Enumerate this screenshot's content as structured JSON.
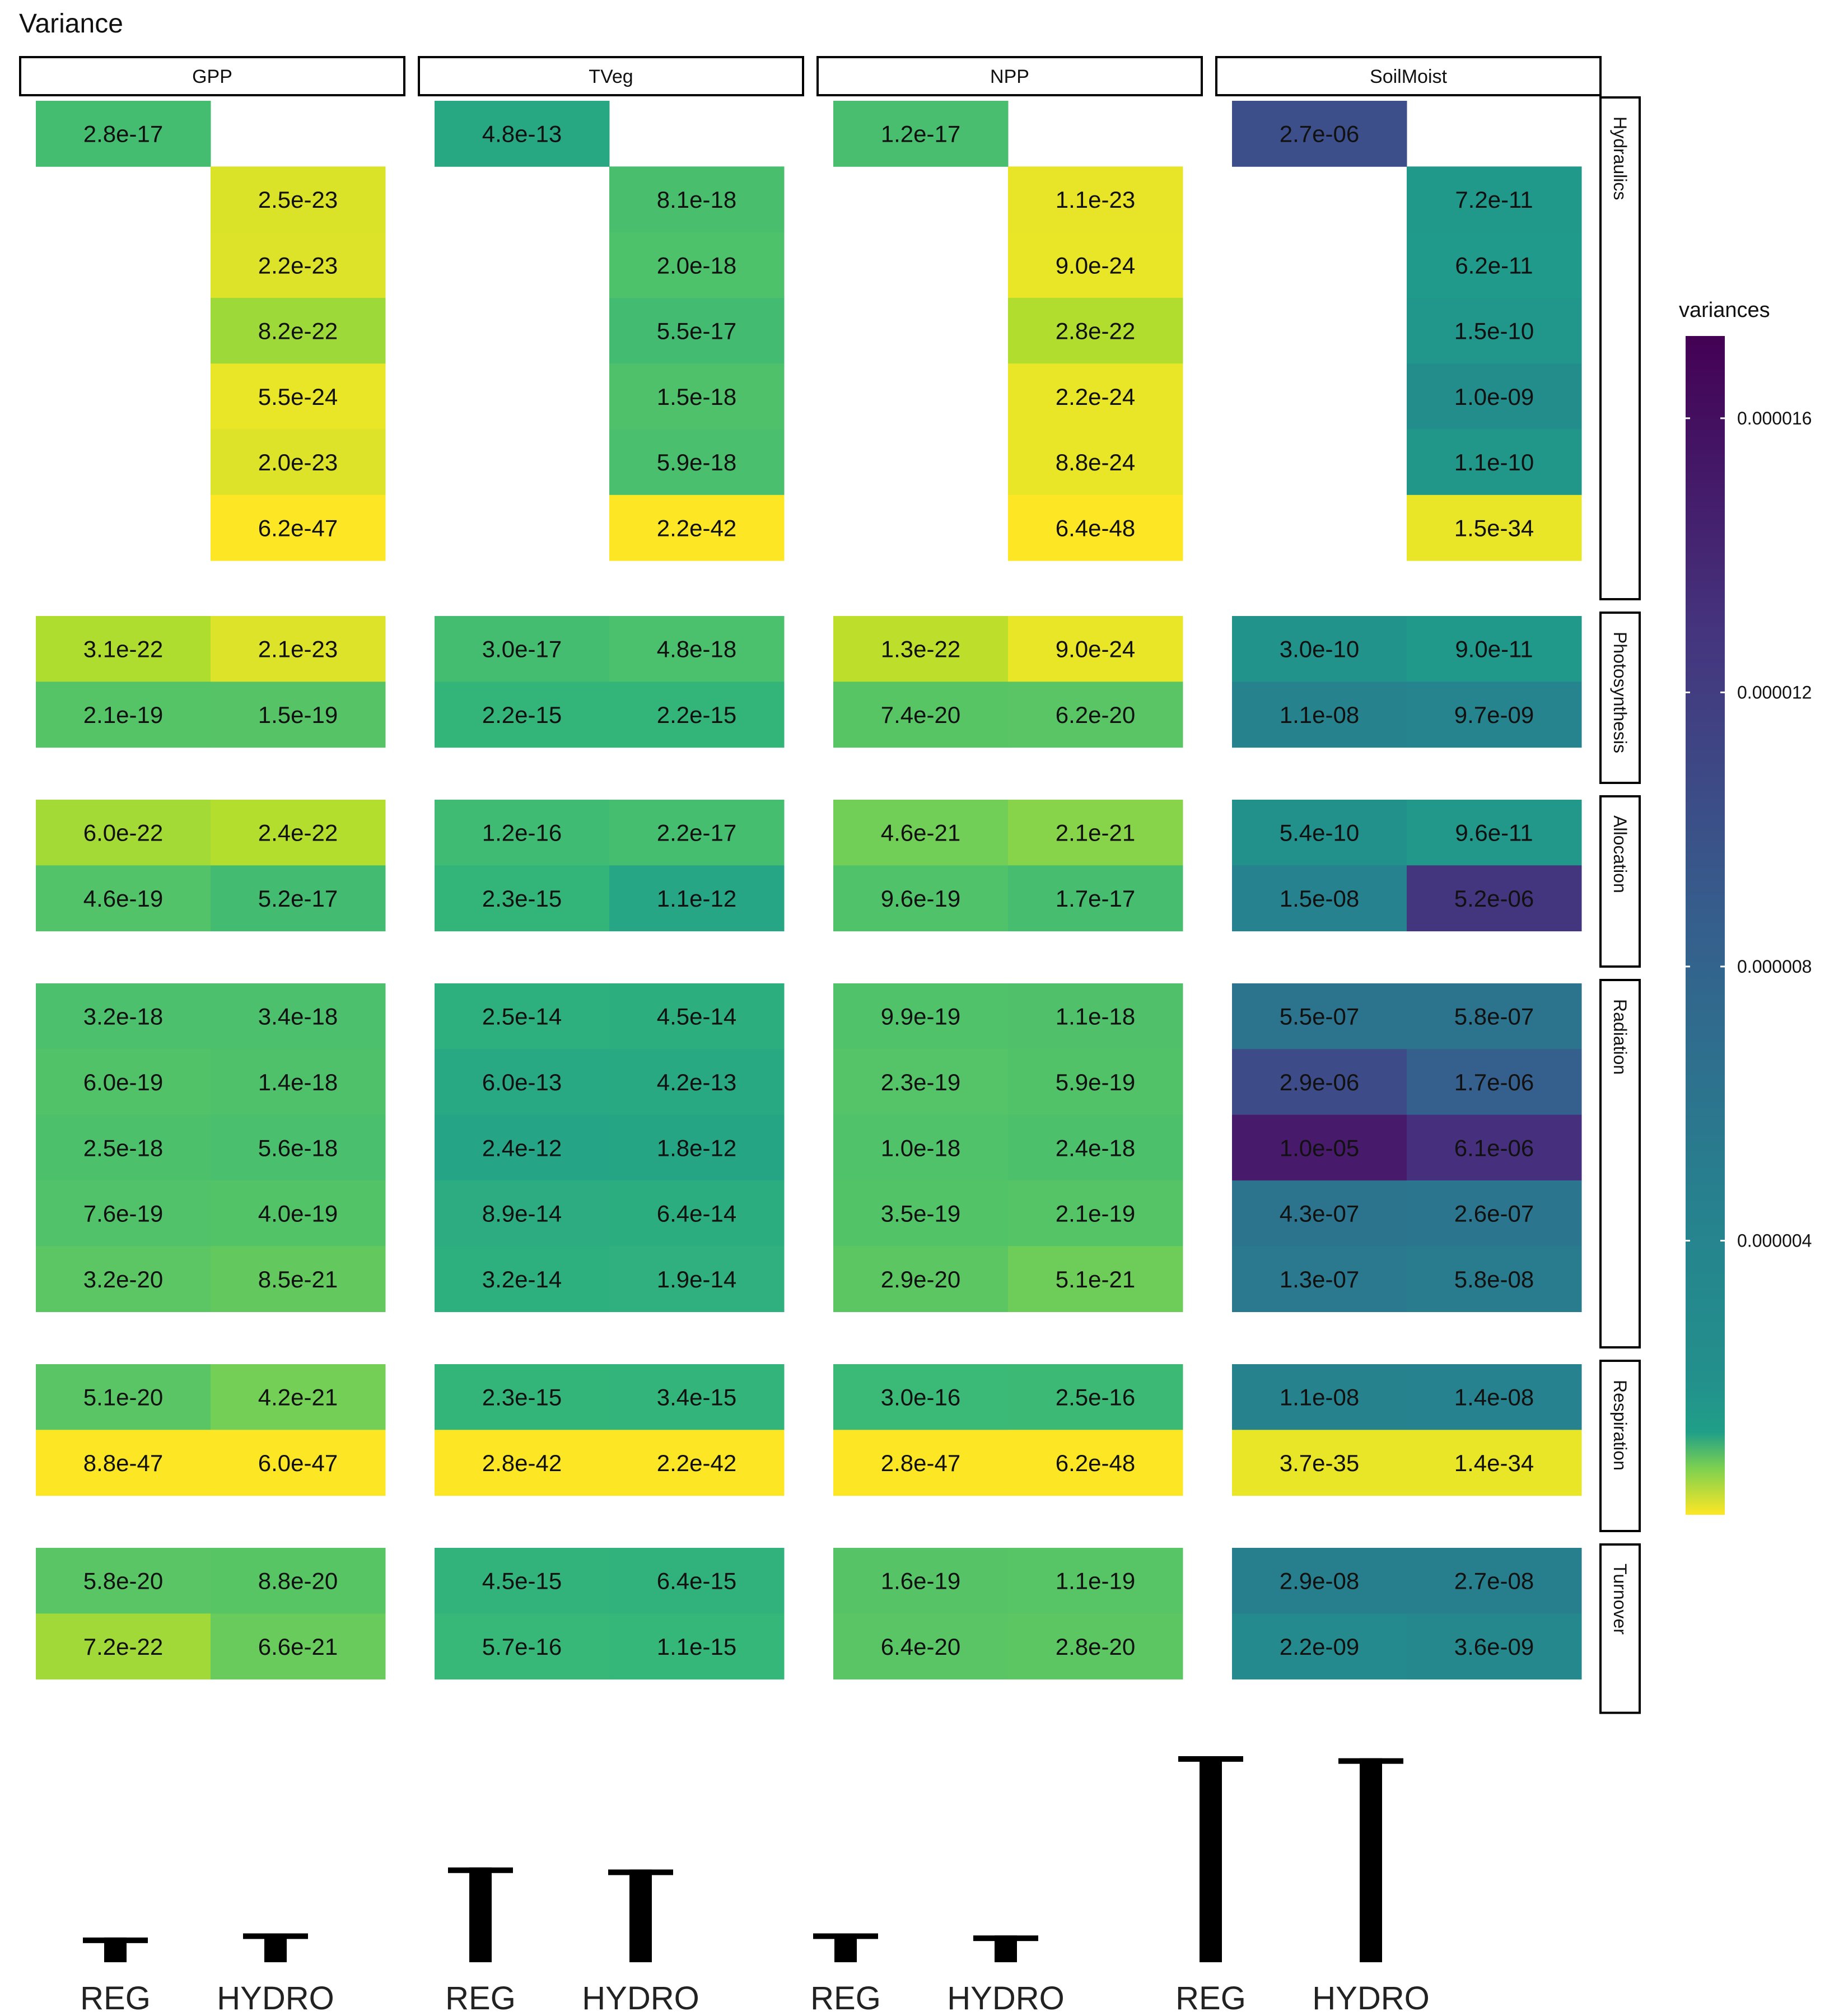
{
  "chart_data": {
    "type": "heatmap",
    "title": "Variance",
    "columns": [
      "REG",
      "HYDRO"
    ],
    "variables": [
      "GPP",
      "TVeg",
      "NPP",
      "SoilMoist"
    ],
    "legend": {
      "title": "variances",
      "ticks": [
        {
          "value": 4e-06,
          "label": "0.000004"
        },
        {
          "value": 8e-06,
          "label": "0.000008"
        },
        {
          "value": 1.2e-05,
          "label": "0.000012"
        },
        {
          "value": 1.6e-05,
          "label": "0.000016"
        }
      ],
      "range": [
        0,
        1.72e-05
      ],
      "placement": "right"
    },
    "groups": [
      {
        "name": "Hydraulics",
        "rows": 7
      },
      {
        "name": "Photosynthesis",
        "rows": 2
      },
      {
        "name": "Allocation",
        "rows": 2
      },
      {
        "name": "Radiation",
        "rows": 5
      },
      {
        "name": "Respiration",
        "rows": 2
      },
      {
        "name": "Turnover",
        "rows": 2
      }
    ],
    "panels": [
      {
        "variable": "GPP",
        "cells": [
          [
            "2.8e-17",
            null
          ],
          [
            null,
            "2.5e-23"
          ],
          [
            null,
            "2.2e-23"
          ],
          [
            null,
            "8.2e-22"
          ],
          [
            null,
            "5.5e-24"
          ],
          [
            null,
            "2.0e-23"
          ],
          [
            null,
            "6.2e-47"
          ],
          [
            "3.1e-22",
            "2.1e-23"
          ],
          [
            "2.1e-19",
            "1.5e-19"
          ],
          [
            "6.0e-22",
            "2.4e-22"
          ],
          [
            "4.6e-19",
            "5.2e-17"
          ],
          [
            "3.2e-18",
            "3.4e-18"
          ],
          [
            "6.0e-19",
            "1.4e-18"
          ],
          [
            "2.5e-18",
            "5.6e-18"
          ],
          [
            "7.6e-19",
            "4.0e-19"
          ],
          [
            "3.2e-20",
            "8.5e-21"
          ],
          [
            "5.1e-20",
            "4.2e-21"
          ],
          [
            "8.8e-47",
            "6.0e-47"
          ],
          [
            "5.8e-20",
            "8.8e-20"
          ],
          [
            "7.2e-22",
            "6.6e-21"
          ]
        ]
      },
      {
        "variable": "TVeg",
        "cells": [
          [
            "4.8e-13",
            null
          ],
          [
            null,
            "8.1e-18"
          ],
          [
            null,
            "2.0e-18"
          ],
          [
            null,
            "5.5e-17"
          ],
          [
            null,
            "1.5e-18"
          ],
          [
            null,
            "5.9e-18"
          ],
          [
            null,
            "2.2e-42"
          ],
          [
            "3.0e-17",
            "4.8e-18"
          ],
          [
            "2.2e-15",
            "2.2e-15"
          ],
          [
            "1.2e-16",
            "2.2e-17"
          ],
          [
            "2.3e-15",
            "1.1e-12"
          ],
          [
            "2.5e-14",
            "4.5e-14"
          ],
          [
            "6.0e-13",
            "4.2e-13"
          ],
          [
            "2.4e-12",
            "1.8e-12"
          ],
          [
            "8.9e-14",
            "6.4e-14"
          ],
          [
            "3.2e-14",
            "1.9e-14"
          ],
          [
            "2.3e-15",
            "3.4e-15"
          ],
          [
            "2.8e-42",
            "2.2e-42"
          ],
          [
            "4.5e-15",
            "6.4e-15"
          ],
          [
            "5.7e-16",
            "1.1e-15"
          ]
        ]
      },
      {
        "variable": "NPP",
        "cells": [
          [
            "1.2e-17",
            null
          ],
          [
            null,
            "1.1e-23"
          ],
          [
            null,
            "9.0e-24"
          ],
          [
            null,
            "2.8e-22"
          ],
          [
            null,
            "2.2e-24"
          ],
          [
            null,
            "8.8e-24"
          ],
          [
            null,
            "6.4e-48"
          ],
          [
            "1.3e-22",
            "9.0e-24"
          ],
          [
            "7.4e-20",
            "6.2e-20"
          ],
          [
            "4.6e-21",
            "2.1e-21"
          ],
          [
            "9.6e-19",
            "1.7e-17"
          ],
          [
            "9.9e-19",
            "1.1e-18"
          ],
          [
            "2.3e-19",
            "5.9e-19"
          ],
          [
            "1.0e-18",
            "2.4e-18"
          ],
          [
            "3.5e-19",
            "2.1e-19"
          ],
          [
            "2.9e-20",
            "5.1e-21"
          ],
          [
            "3.0e-16",
            "2.5e-16"
          ],
          [
            "2.8e-47",
            "6.2e-48"
          ],
          [
            "1.6e-19",
            "1.1e-19"
          ],
          [
            "6.4e-20",
            "2.8e-20"
          ]
        ]
      },
      {
        "variable": "SoilMoist",
        "cells": [
          [
            "2.7e-06",
            null
          ],
          [
            null,
            "7.2e-11"
          ],
          [
            null,
            "6.2e-11"
          ],
          [
            null,
            "1.5e-10"
          ],
          [
            null,
            "1.0e-09"
          ],
          [
            null,
            "1.1e-10"
          ],
          [
            null,
            "1.5e-34"
          ],
          [
            "3.0e-10",
            "9.0e-11"
          ],
          [
            "1.1e-08",
            "9.7e-09"
          ],
          [
            "5.4e-10",
            "9.6e-11"
          ],
          [
            "1.5e-08",
            "5.2e-06"
          ],
          [
            "5.5e-07",
            "5.8e-07"
          ],
          [
            "2.9e-06",
            "1.7e-06"
          ],
          [
            "1.0e-05",
            "6.1e-06"
          ],
          [
            "4.3e-07",
            "2.6e-07"
          ],
          [
            "1.3e-07",
            "5.8e-08"
          ],
          [
            "1.1e-08",
            "1.4e-08"
          ],
          [
            "3.7e-35",
            "1.4e-34"
          ],
          [
            "2.9e-08",
            "2.7e-08"
          ],
          [
            "2.2e-09",
            "3.6e-09"
          ]
        ]
      }
    ],
    "bottom_bars": {
      "type": "bar",
      "values": [
        {
          "variable": "GPP",
          "label": "REG",
          "value": 0.12
        },
        {
          "variable": "GPP",
          "label": "HYDRO",
          "value": 0.14
        },
        {
          "variable": "TVeg",
          "label": "REG",
          "value": 0.46
        },
        {
          "variable": "TVeg",
          "label": "HYDRO",
          "value": 0.45
        },
        {
          "variable": "NPP",
          "label": "REG",
          "value": 0.14
        },
        {
          "variable": "NPP",
          "label": "HYDRO",
          "value": 0.13
        },
        {
          "variable": "SoilMoist",
          "label": "REG",
          "value": 1.0
        },
        {
          "variable": "SoilMoist",
          "label": "HYDRO",
          "value": 0.99
        }
      ]
    }
  }
}
